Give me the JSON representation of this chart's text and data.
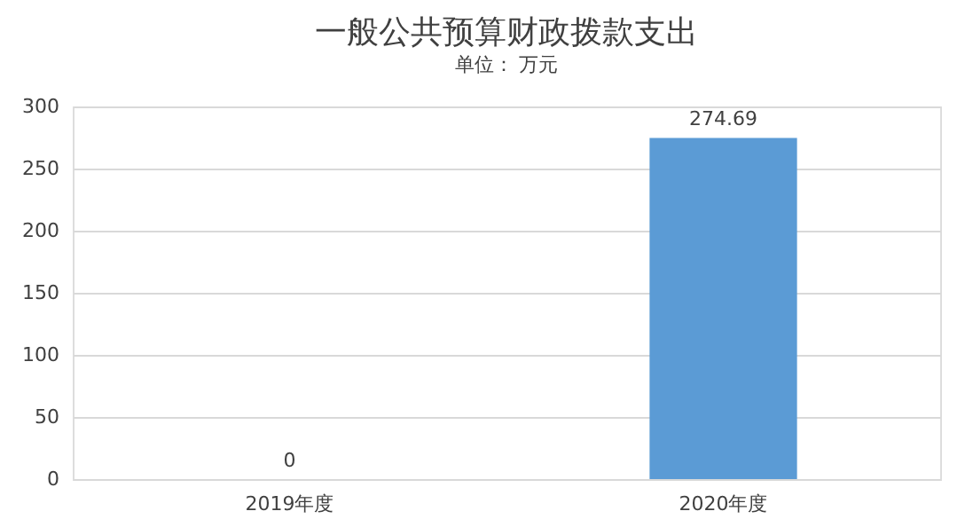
{
  "chart_data": {
    "type": "bar",
    "title": "一般公共预算财政拨款支出",
    "subtitle": "单位： 万元",
    "categories": [
      "2019年度",
      "2020年度"
    ],
    "values": [
      0,
      274.69
    ],
    "color": "#5b9bd5",
    "ylim": [
      0,
      300
    ],
    "yticks": [
      0,
      50,
      100,
      150,
      200,
      250,
      300
    ],
    "grid": "y",
    "data_labels": true
  }
}
